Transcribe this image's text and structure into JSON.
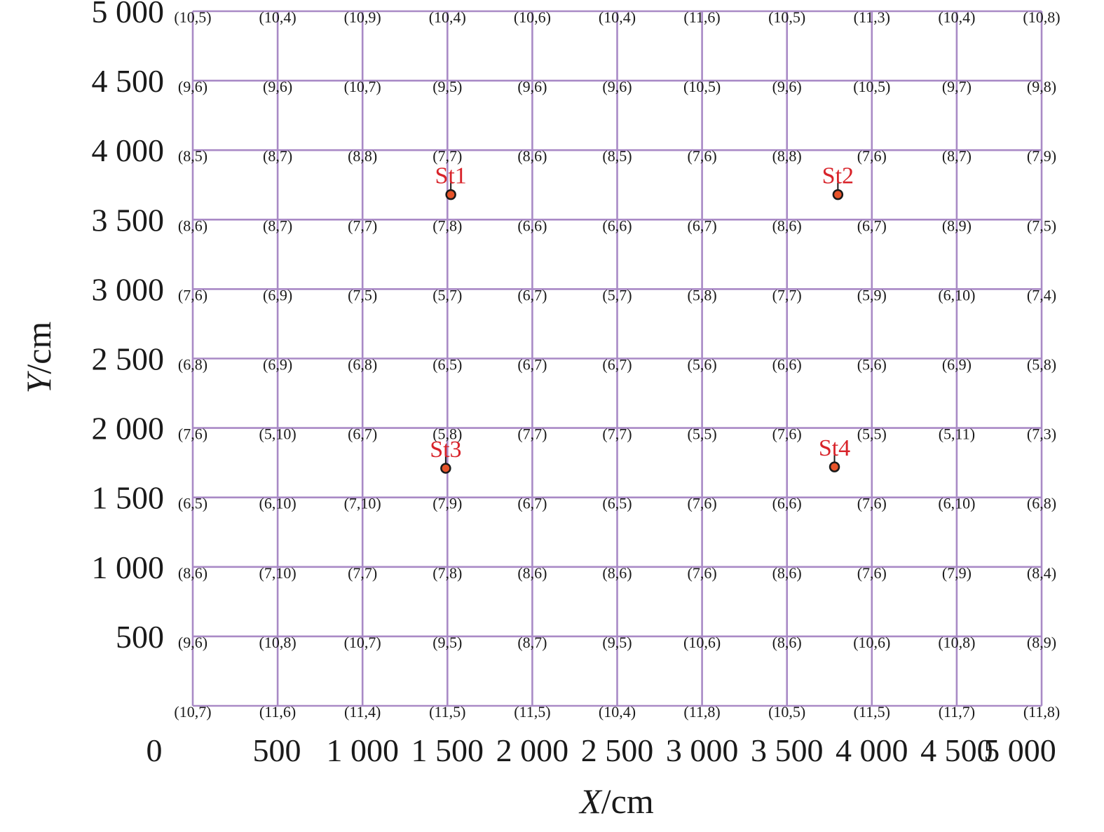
{
  "chart_data": {
    "type": "scatter",
    "title": "",
    "xlabel": {
      "var": "X",
      "unit": "/cm"
    },
    "ylabel": {
      "var": "Y",
      "unit": "/cm"
    },
    "xlim": [
      0,
      5000
    ],
    "ylim": [
      0,
      5000
    ],
    "grid": true,
    "grid_step": 500,
    "x_ticks": [
      {
        "value": 0,
        "label": "0"
      },
      {
        "value": 500,
        "label": "500"
      },
      {
        "value": 1000,
        "label": "1 000"
      },
      {
        "value": 1500,
        "label": "1 500"
      },
      {
        "value": 2000,
        "label": "2 000"
      },
      {
        "value": 2500,
        "label": "2 500"
      },
      {
        "value": 3000,
        "label": "3 000"
      },
      {
        "value": 3500,
        "label": "3 500"
      },
      {
        "value": 4000,
        "label": "4 000"
      },
      {
        "value": 4500,
        "label": "4 500"
      },
      {
        "value": 5000,
        "label": "5 000"
      }
    ],
    "y_ticks": [
      {
        "value": 500,
        "label": "500"
      },
      {
        "value": 1000,
        "label": "1 000"
      },
      {
        "value": 1500,
        "label": "1 500"
      },
      {
        "value": 2000,
        "label": "2 000"
      },
      {
        "value": 2500,
        "label": "2 500"
      },
      {
        "value": 3000,
        "label": "3 000"
      },
      {
        "value": 3500,
        "label": "3 500"
      },
      {
        "value": 4000,
        "label": "4 000"
      },
      {
        "value": 4500,
        "label": "4 500"
      },
      {
        "value": 5000,
        "label": "5 000"
      }
    ],
    "grid_x_values": [
      0,
      500,
      1000,
      1500,
      2000,
      2500,
      3000,
      3500,
      4000,
      4500,
      5000
    ],
    "grid_y_values": [
      5000,
      4500,
      4000,
      3500,
      3000,
      2500,
      2000,
      1500,
      1000,
      500,
      0
    ],
    "node_labels": [
      [
        "(10,5)",
        "(10,4)",
        "(10,9)",
        "(10,4)",
        "(10,6)",
        "(10,4)",
        "(11,6)",
        "(10,5)",
        "(11,3)",
        "(10,4)",
        "(10,8)"
      ],
      [
        "(9,6)",
        "(9,6)",
        "(10,7)",
        "(9,5)",
        "(9,6)",
        "(9,6)",
        "(10,5)",
        "(9,6)",
        "(10,5)",
        "(9,7)",
        "(9,8)"
      ],
      [
        "(8,5)",
        "(8,7)",
        "(8,8)",
        "(7,7)",
        "(8,6)",
        "(8,5)",
        "(7,6)",
        "(8,8)",
        "(7,6)",
        "(8,7)",
        "(7,9)"
      ],
      [
        "(8,6)",
        "(8,7)",
        "(7,7)",
        "(7,8)",
        "(6,6)",
        "(6,6)",
        "(6,7)",
        "(8,6)",
        "(6,7)",
        "(8,9)",
        "(7,5)"
      ],
      [
        "(7,6)",
        "(6,9)",
        "(7,5)",
        "(5,7)",
        "(6,7)",
        "(5,7)",
        "(5,8)",
        "(7,7)",
        "(5,9)",
        "(6,10)",
        "(7,4)"
      ],
      [
        "(6,8)",
        "(6,9)",
        "(6,8)",
        "(6,5)",
        "(6,7)",
        "(6,7)",
        "(5,6)",
        "(6,6)",
        "(5,6)",
        "(6,9)",
        "(5,8)"
      ],
      [
        "(7,6)",
        "(5,10)",
        "(6,7)",
        "(5,8)",
        "(7,7)",
        "(7,7)",
        "(5,5)",
        "(7,6)",
        "(5,5)",
        "(5,11)",
        "(7,3)"
      ],
      [
        "(6,5)",
        "(6,10)",
        "(7,10)",
        "(7,9)",
        "(6,7)",
        "(6,5)",
        "(7,6)",
        "(6,6)",
        "(7,6)",
        "(6,10)",
        "(6,8)"
      ],
      [
        "(8,6)",
        "(7,10)",
        "(7,7)",
        "(7,8)",
        "(8,6)",
        "(8,6)",
        "(7,6)",
        "(8,6)",
        "(7,6)",
        "(7,9)",
        "(8,4)"
      ],
      [
        "(9,6)",
        "(10,8)",
        "(10,7)",
        "(9,5)",
        "(8,7)",
        "(9,5)",
        "(10,6)",
        "(8,6)",
        "(10,6)",
        "(10,8)",
        "(8,9)"
      ],
      [
        "(10,7)",
        "(11,6)",
        "(11,4)",
        "(11,5)",
        "(11,5)",
        "(10,4)",
        "(11,8)",
        "(10,5)",
        "(11,5)",
        "(11,7)",
        "(11,8)"
      ]
    ],
    "stations": [
      {
        "name": "St1",
        "x": 1520,
        "y": 3680
      },
      {
        "name": "St2",
        "x": 3800,
        "y": 3680
      },
      {
        "name": "St3",
        "x": 1490,
        "y": 1710
      },
      {
        "name": "St4",
        "x": 3780,
        "y": 1720
      }
    ]
  },
  "colors": {
    "grid": "#a98ac6",
    "station_fill": "#e8542a",
    "station_outline": "#1a1a1a",
    "station_label": "#d8232a",
    "text": "#1a1a1a"
  }
}
